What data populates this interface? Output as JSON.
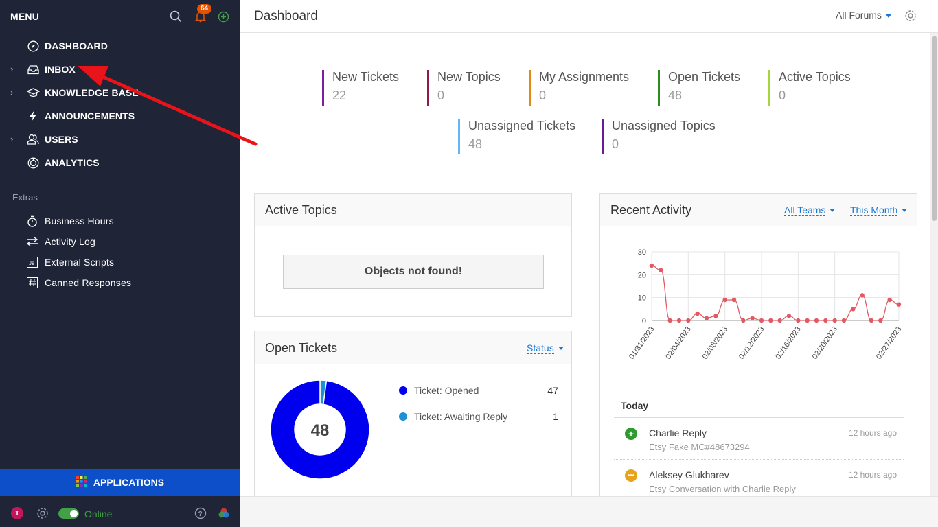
{
  "sidebar": {
    "menu_title": "MENU",
    "notification_count": "64",
    "nav": [
      {
        "label": "DASHBOARD",
        "icon": "compass-icon",
        "expandable": false
      },
      {
        "label": "INBOX",
        "icon": "inbox-icon",
        "expandable": true
      },
      {
        "label": "KNOWLEDGE BASE",
        "icon": "graduation-cap-icon",
        "expandable": true
      },
      {
        "label": "ANNOUNCEMENTS",
        "icon": "lightning-icon",
        "expandable": false
      },
      {
        "label": "USERS",
        "icon": "users-icon",
        "expandable": true
      },
      {
        "label": "ANALYTICS",
        "icon": "analytics-icon",
        "expandable": false
      }
    ],
    "extras_title": "Extras",
    "extras": [
      {
        "label": "Business Hours",
        "icon": "stopwatch-icon"
      },
      {
        "label": "Activity Log",
        "icon": "arrows-icon"
      },
      {
        "label": "External Scripts",
        "icon": "js-icon"
      },
      {
        "label": "Canned Responses",
        "icon": "hash-icon"
      }
    ],
    "applications_label": "APPLICATIONS",
    "user_initial": "T",
    "status": "Online"
  },
  "header": {
    "title": "Dashboard",
    "forum_filter": "All Forums"
  },
  "stats": [
    {
      "label": "New Tickets",
      "value": "22",
      "color": "#7b1fa2"
    },
    {
      "label": "New Topics",
      "value": "0",
      "color": "#8e1a4a"
    },
    {
      "label": "My Assignments",
      "value": "0",
      "color": "#e08a0f"
    },
    {
      "label": "Open Tickets",
      "value": "48",
      "color": "#2e8b1f"
    },
    {
      "label": "Active Topics",
      "value": "0",
      "color": "#a5d63a"
    },
    {
      "label": "Unassigned Tickets",
      "value": "48",
      "color": "#64b5f6"
    },
    {
      "label": "Unassigned Topics",
      "value": "0",
      "color": "#6a1b9a"
    }
  ],
  "active_topics": {
    "title": "Active Topics",
    "empty_message": "Objects not found!"
  },
  "open_tickets": {
    "title": "Open Tickets",
    "filter": "Status",
    "total": "48",
    "legend": [
      {
        "label": "Ticket: Opened",
        "value": "47",
        "color": "#0000ee"
      },
      {
        "label": "Ticket: Awaiting Reply",
        "value": "1",
        "color": "#1e90d6"
      }
    ]
  },
  "recent_activity": {
    "title": "Recent Activity",
    "team_filter": "All Teams",
    "period_filter": "This Month",
    "today_label": "Today",
    "items": [
      {
        "name": "Charlie Reply",
        "sub": "Etsy Fake MC#48673294",
        "time": "12 hours ago",
        "icon": "plus-circle-icon",
        "color": "#2e9b2e"
      },
      {
        "name": "Aleksey Glukharev",
        "sub": "Etsy Conversation with Charlie Reply",
        "time": "12 hours ago",
        "icon": "chat-bubble-icon",
        "color": "#e8a317"
      }
    ]
  },
  "chart_data": {
    "type": "line",
    "x": [
      "01/31/2023",
      "02/01/2023",
      "02/02/2023",
      "02/03/2023",
      "02/04/2023",
      "02/05/2023",
      "02/06/2023",
      "02/07/2023",
      "02/08/2023",
      "02/09/2023",
      "02/10/2023",
      "02/11/2023",
      "02/12/2023",
      "02/13/2023",
      "02/14/2023",
      "02/15/2023",
      "02/16/2023",
      "02/17/2023",
      "02/18/2023",
      "02/19/2023",
      "02/20/2023",
      "02/21/2023",
      "02/22/2023",
      "02/23/2023",
      "02/24/2023",
      "02/25/2023",
      "02/26/2023",
      "02/27/2023"
    ],
    "tick_labels": [
      "01/31/2023",
      "02/04/2023",
      "02/08/2023",
      "02/12/2023",
      "02/16/2023",
      "02/20/2023",
      "02/27/2023"
    ],
    "values": [
      24,
      22,
      0,
      0,
      0,
      3,
      1,
      2,
      9,
      9,
      0,
      1,
      0,
      0,
      0,
      2,
      0,
      0,
      0,
      0,
      0,
      0,
      5,
      11,
      0,
      0,
      9,
      7
    ],
    "ylim": [
      0,
      30
    ],
    "yticks": [
      0,
      10,
      20,
      30
    ],
    "color": "#e05a64",
    "grid": true
  }
}
